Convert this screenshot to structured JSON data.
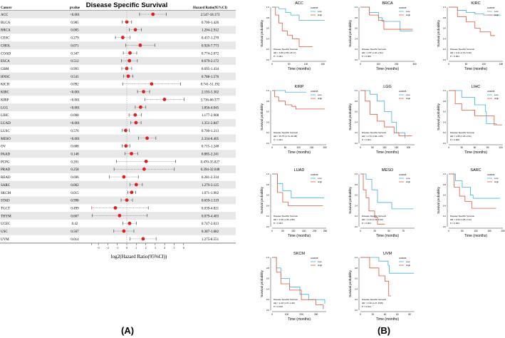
{
  "chart_data": [
    {
      "type": "forest",
      "title": "Disease Specific Survival",
      "columns": {
        "cancer": "Cancer",
        "pvalue": "pvalue",
        "hr": "Hazard Ratio(95%CI)"
      },
      "xlabel": "log2(Hazard Ratio(95%CI))",
      "xlim": [
        -3.7,
        6
      ],
      "xticks": [
        -3,
        -2,
        -1,
        0,
        1,
        2,
        3,
        4,
        5,
        6
      ],
      "point_color": "#e41a1c",
      "panel_label": "(A)",
      "rows": [
        {
          "cancer": "ACC",
          "pvalue": "<0.001",
          "hr": "2.547-18.173"
        },
        {
          "cancer": "BLCA",
          "pvalue": "0.985",
          "hr": "0.706-1.426"
        },
        {
          "cancer": "BRCA",
          "pvalue": "0.005",
          "hr": "1.204-2.912"
        },
        {
          "cancer": "CESC",
          "pvalue": "0.279",
          "hr": "0.437-1.270"
        },
        {
          "cancer": "CHOL",
          "pvalue": "0.071",
          "hr": "0.920-7.773"
        },
        {
          "cancer": "COAD",
          "pvalue": "0.347",
          "hr": "0.774-2.072"
        },
        {
          "cancer": "ESCA",
          "pvalue": "0.512",
          "hr": "0.679-2.172"
        },
        {
          "cancer": "GBM",
          "pvalue": "0.993",
          "hr": "0.695-1.434"
        },
        {
          "cancer": "HNSC",
          "pvalue": "0.541",
          "hr": "0.788-1.576"
        },
        {
          "cancer": "KICH",
          "pvalue": "0.092",
          "hr": "0.741-51.192"
        },
        {
          "cancer": "KIRC",
          "pvalue": "<0.001",
          "hr": "2.193-5.302"
        },
        {
          "cancer": "KIRP",
          "pvalue": "<0.001",
          "hr": "3.736-66.377"
        },
        {
          "cancer": "LGG",
          "pvalue": "<0.001",
          "hr": "1.856-4.045"
        },
        {
          "cancer": "LIHC",
          "pvalue": "0.008",
          "hr": "1.177-2.908"
        },
        {
          "cancer": "LUAD",
          "pvalue": "<0.001",
          "hr": "1.351-2.847"
        },
        {
          "cancer": "LUSC",
          "pvalue": "0.576",
          "hr": "0.706-1.213"
        },
        {
          "cancer": "MESO",
          "pvalue": "<0.001",
          "hr": "2.334-8.405"
        },
        {
          "cancer": "OV",
          "pvalue": "0.688",
          "hr": "0.715-1.248"
        },
        {
          "cancer": "PAAD",
          "pvalue": "0.148",
          "hr": "0.885-2.241"
        },
        {
          "cancer": "PCPG",
          "pvalue": "0.201",
          "hr": "0.470-35.827"
        },
        {
          "cancer": "PRAD",
          "pvalue": "0.258",
          "hr": "0.394-32.048"
        },
        {
          "cancer": "READ",
          "pvalue": "0.696",
          "hr": "0.281-2.334"
        },
        {
          "cancer": "SARC",
          "pvalue": "0.002",
          "hr": "1.279-3.125"
        },
        {
          "cancer": "SKCM",
          "pvalue": "0.015",
          "hr": "1.071-1.902"
        },
        {
          "cancer": "STAD",
          "pvalue": "0.998",
          "hr": "0.659-1.519"
        },
        {
          "cancer": "TGCT",
          "pvalue": "0.499",
          "hr": "0.039-4.821"
        },
        {
          "cancer": "THYM",
          "pvalue": "0.607",
          "hr": "0.079-4.403"
        },
        {
          "cancer": "UCEC",
          "pvalue": "0.42",
          "hr": "0.747-2.013"
        },
        {
          "cancer": "USC",
          "pvalue": "0.567",
          "hr": "0.387-1.682"
        },
        {
          "cancer": "UVM",
          "pvalue": "0.014",
          "hr": "1.275-8.551"
        }
      ]
    },
    {
      "type": "line",
      "subtype": "kaplan-meier",
      "panel_label": "(B)",
      "ylabel": "Survival probability",
      "xlabel": "Time (months)",
      "ylim": [
        0,
        1
      ],
      "yticks": [
        "0.0",
        "0.2",
        "0.4",
        "0.6",
        "0.8",
        "1.0"
      ],
      "legend_title": "AURKB",
      "legend_placement": "top-right",
      "series_names": [
        "Low",
        "High"
      ],
      "colors": {
        "Low": "#3cb4d6",
        "High": "#e2553c"
      },
      "stat_title": "Disease Specific Survival",
      "plots": [
        {
          "title": "ACC",
          "xticks": [
            0,
            50,
            100,
            150
          ],
          "xmax": 160,
          "hr": "HR = 6.80 (2.55−18.17)",
          "p": "P < 0.001",
          "low": [
            [
              0,
              1
            ],
            [
              20,
              0.97
            ],
            [
              40,
              0.9
            ],
            [
              55,
              0.85
            ],
            [
              80,
              0.75
            ],
            [
              155,
              0.75
            ]
          ],
          "high": [
            [
              0,
              1
            ],
            [
              10,
              0.85
            ],
            [
              20,
              0.7
            ],
            [
              30,
              0.55
            ],
            [
              45,
              0.47
            ],
            [
              60,
              0.4
            ],
            [
              80,
              0.25
            ],
            [
              120,
              0.25
            ]
          ]
        },
        {
          "title": "BRCA",
          "xticks": [
            0,
            100,
            200,
            300
          ],
          "xmax": 300,
          "hr": "HR = 1.87 (1.20−2.91)",
          "p": "P = 0.005",
          "low": [
            [
              0,
              1
            ],
            [
              50,
              0.9
            ],
            [
              100,
              0.8
            ],
            [
              120,
              0.73
            ],
            [
              220,
              0.55
            ],
            [
              290,
              0.55
            ]
          ],
          "high": [
            [
              0,
              1
            ],
            [
              50,
              0.85
            ],
            [
              100,
              0.75
            ],
            [
              130,
              0.58
            ],
            [
              290,
              0.58
            ]
          ]
        },
        {
          "title": "KIRC",
          "xticks": [
            0,
            50,
            100,
            150
          ],
          "xmax": 155,
          "hr": "HR = 3.41 (2.19−5.30)",
          "p": "P < 0.001",
          "low": [
            [
              0,
              1
            ],
            [
              25,
              0.94
            ],
            [
              50,
              0.9
            ],
            [
              75,
              0.87
            ],
            [
              100,
              0.85
            ],
            [
              150,
              0.85
            ]
          ],
          "high": [
            [
              0,
              1
            ],
            [
              25,
              0.82
            ],
            [
              50,
              0.72
            ],
            [
              75,
              0.6
            ],
            [
              90,
              0.53
            ],
            [
              120,
              0.46
            ],
            [
              133,
              0.46
            ]
          ]
        },
        {
          "title": "KIRP",
          "xticks": [
            0,
            50,
            100,
            150,
            200
          ],
          "xmax": 205,
          "hr": "HR = 15.75 (3.74−66.38)",
          "p": "P < 0.001",
          "low": [
            [
              0,
              1
            ],
            [
              50,
              0.97
            ],
            [
              130,
              0.97
            ]
          ],
          "high": [
            [
              0,
              1
            ],
            [
              10,
              0.88
            ],
            [
              25,
              0.8
            ],
            [
              50,
              0.73
            ],
            [
              75,
              0.7
            ],
            [
              90,
              0.65
            ],
            [
              200,
              0.65
            ]
          ]
        },
        {
          "title": "LGG",
          "xticks": [
            0,
            50,
            100,
            150,
            200
          ],
          "xmax": 225,
          "hr": "HR = 2.74 (1.86−4.05)",
          "p": "P < 0.001",
          "low": [
            [
              0,
              1
            ],
            [
              40,
              0.93
            ],
            [
              70,
              0.8
            ],
            [
              100,
              0.6
            ],
            [
              130,
              0.4
            ],
            [
              150,
              0.2
            ],
            [
              185,
              0.1
            ]
          ],
          "high": [
            [
              0,
              1
            ],
            [
              20,
              0.8
            ],
            [
              40,
              0.55
            ],
            [
              70,
              0.42
            ],
            [
              100,
              0.31
            ],
            [
              140,
              0.2
            ],
            [
              160,
              0.14
            ],
            [
              215,
              0.14
            ]
          ]
        },
        {
          "title": "LIHC",
          "xticks": [
            0,
            30,
            60,
            90,
            120
          ],
          "xmax": 125,
          "hr": "HR = 1.85 (1.18−2.91)",
          "p": "P = 0.008",
          "low": [
            [
              0,
              1
            ],
            [
              30,
              0.87
            ],
            [
              60,
              0.73
            ],
            [
              85,
              0.6
            ],
            [
              87,
              0.37
            ],
            [
              110,
              0.35
            ]
          ],
          "high": [
            [
              0,
              1
            ],
            [
              15,
              0.75
            ],
            [
              30,
              0.63
            ],
            [
              60,
              0.52
            ],
            [
              105,
              0.35
            ],
            [
              122,
              0.34
            ]
          ]
        },
        {
          "title": "LUAD",
          "xticks": [
            0,
            50,
            100,
            150,
            200,
            250
          ],
          "xmax": 255,
          "hr": "HR = 1.96 (1.35−2.85)",
          "p": "P < 0.001",
          "low": [
            [
              0,
              1
            ],
            [
              25,
              0.82
            ],
            [
              50,
              0.68
            ],
            [
              90,
              0.55
            ],
            [
              245,
              0.55
            ]
          ],
          "high": [
            [
              0,
              1
            ],
            [
              25,
              0.65
            ],
            [
              50,
              0.47
            ],
            [
              75,
              0.4
            ],
            [
              240,
              0.4
            ]
          ]
        },
        {
          "title": "MESO",
          "xticks": [
            0,
            25,
            50,
            75
          ],
          "xmax": 95,
          "hr": "HR = 4.43 (2.33−8.40)",
          "p": "P < 0.001",
          "low": [
            [
              0,
              1
            ],
            [
              10,
              0.9
            ],
            [
              20,
              0.7
            ],
            [
              30,
              0.46
            ],
            [
              55,
              0.34
            ],
            [
              93,
              0.34
            ]
          ],
          "high": [
            [
              0,
              1
            ],
            [
              5,
              0.7
            ],
            [
              10,
              0.55
            ],
            [
              15,
              0.3
            ],
            [
              25,
              0.18
            ],
            [
              30,
              0.05
            ],
            [
              43,
              0.05
            ]
          ]
        },
        {
          "title": "SARC",
          "xticks": [
            0,
            50,
            100,
            150,
            200
          ],
          "xmax": 200,
          "hr": "HR = 2.00 (1.28−3.12)",
          "p": "P = 0.002",
          "low": [
            [
              0,
              1
            ],
            [
              25,
              0.87
            ],
            [
              50,
              0.75
            ],
            [
              80,
              0.6
            ],
            [
              90,
              0.54
            ],
            [
              190,
              0.54
            ]
          ],
          "high": [
            [
              0,
              1
            ],
            [
              20,
              0.75
            ],
            [
              40,
              0.58
            ],
            [
              60,
              0.48
            ],
            [
              85,
              0.35
            ],
            [
              175,
              0.35
            ]
          ]
        },
        {
          "title": "SKCM",
          "xticks": [
            0,
            100,
            200,
            300
          ],
          "xmax": 370,
          "hr": "HR = 1.43 (1.07−1.90)",
          "p": "P = 0.015",
          "low": [
            [
              0,
              1
            ],
            [
              30,
              0.8
            ],
            [
              60,
              0.6
            ],
            [
              120,
              0.44
            ],
            [
              190,
              0.3
            ],
            [
              250,
              0.2
            ],
            [
              360,
              0.12
            ]
          ],
          "high": [
            [
              0,
              1
            ],
            [
              30,
              0.72
            ],
            [
              60,
              0.5
            ],
            [
              120,
              0.38
            ],
            [
              200,
              0.2
            ],
            [
              300,
              0.1
            ],
            [
              350,
              0.02
            ]
          ]
        },
        {
          "title": "UVM",
          "xticks": [
            0,
            20,
            40,
            60,
            80
          ],
          "xmax": 88,
          "hr": "HR = 3.30 (1.27−8.55)",
          "p": "P = 0.014",
          "low": [
            [
              0,
              1
            ],
            [
              30,
              0.93
            ],
            [
              45,
              0.85
            ],
            [
              47,
              0.7
            ],
            [
              87,
              0.7
            ]
          ],
          "high": [
            [
              0,
              1
            ],
            [
              15,
              0.8
            ],
            [
              30,
              0.65
            ],
            [
              40,
              0.55
            ],
            [
              46,
              0.27
            ],
            [
              50,
              0.27
            ]
          ]
        }
      ]
    }
  ]
}
